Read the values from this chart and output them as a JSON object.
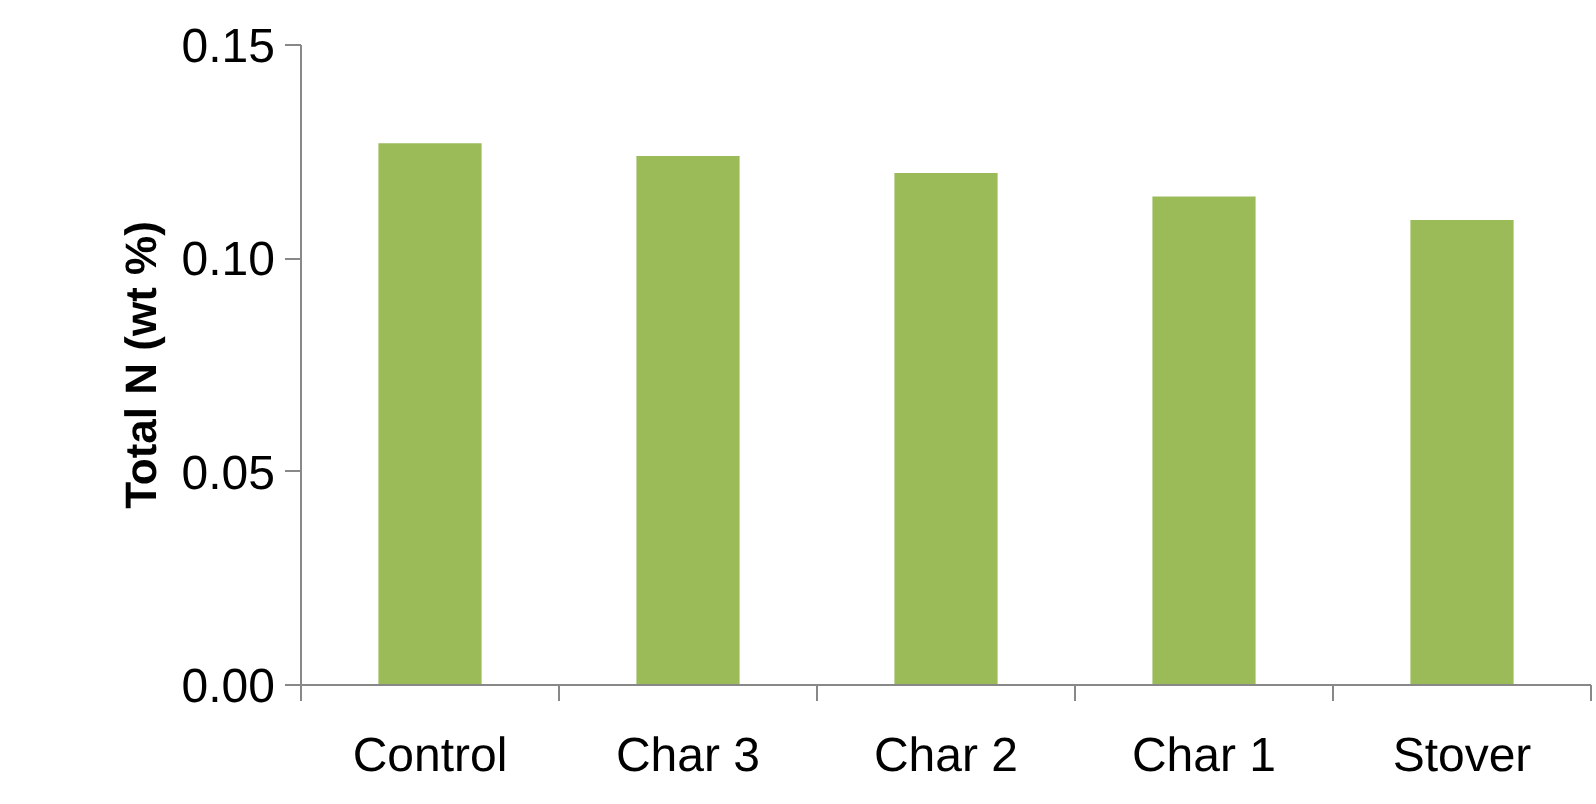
{
  "chart_data": {
    "type": "bar",
    "ylabel": "Total N (wt %)",
    "categories": [
      "Control",
      "Char 3",
      "Char 2",
      "Char 1",
      "Stover"
    ],
    "values": [
      0.127,
      0.124,
      0.12,
      0.1145,
      0.109
    ],
    "color": "#9bbb59",
    "ylim": [
      0,
      0.15
    ],
    "yticks": [
      {
        "value": 0,
        "label": "0.00"
      },
      {
        "value": 0.05,
        "label": "0.05"
      },
      {
        "value": 0.1,
        "label": "0.10"
      },
      {
        "value": 0.15,
        "label": "0.15"
      }
    ],
    "grid": false
  }
}
